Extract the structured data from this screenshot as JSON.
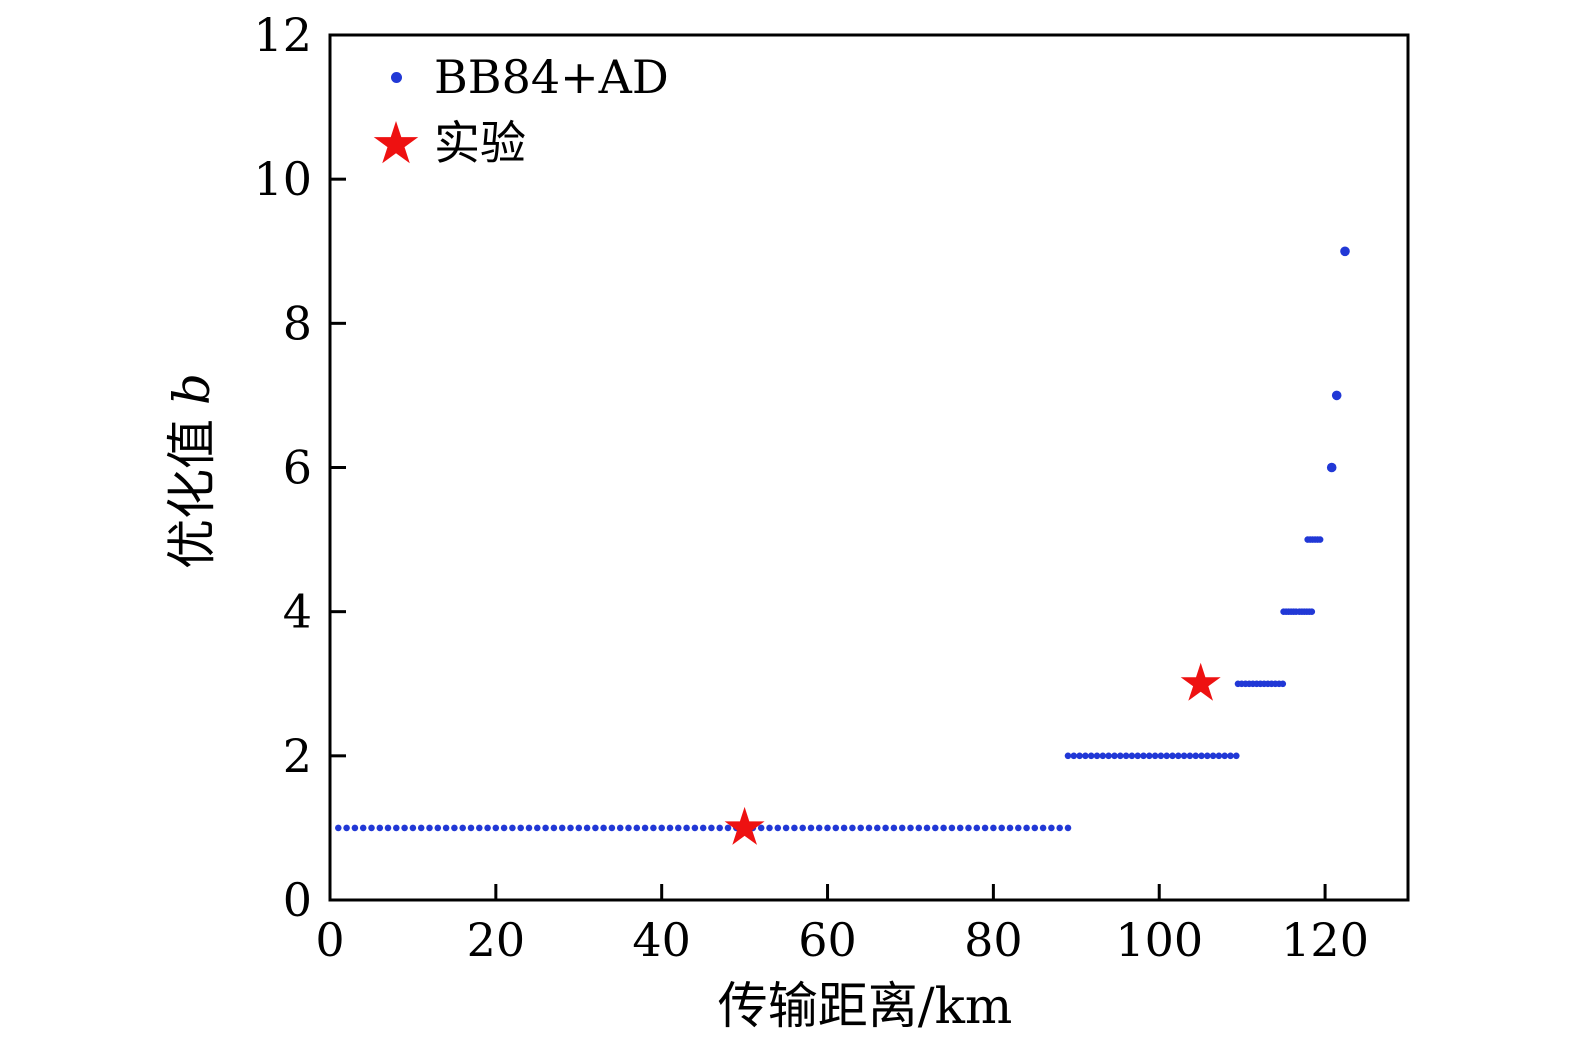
{
  "figure": {
    "background": "#ffffff",
    "frame_color": "#000000"
  },
  "chart_data": {
    "type": "scatter",
    "xlabel": "传输距离/km",
    "ylabel_text": "优化值",
    "ylabel_symbol": "b",
    "xlim": [
      0,
      130
    ],
    "ylim": [
      0,
      12
    ],
    "xticks": [
      0,
      20,
      40,
      60,
      80,
      100,
      120
    ],
    "yticks": [
      0,
      2,
      4,
      6,
      8,
      10,
      12
    ],
    "grid": false,
    "legend_position": "top-left",
    "series": [
      {
        "name": "BB84+AD",
        "marker": "dot",
        "color": "#2138d6",
        "segments": [
          {
            "y": 1,
            "x_start": 1,
            "x_end": 89,
            "dx": 1
          },
          {
            "y": 2,
            "x_start": 89,
            "x_end": 109,
            "dx": 0.7
          },
          {
            "y": 3,
            "x_start": 109.5,
            "x_end": 114.8,
            "dx": 0.45
          },
          {
            "y": 4,
            "x_start": 115,
            "x_end": 116.5,
            "dx": 0.3
          },
          {
            "y": 4,
            "x_start": 116.9,
            "x_end": 118.3,
            "dx": 0.3
          },
          {
            "y": 5,
            "x_start": 117.9,
            "x_end": 119.5,
            "dx": 0.3
          },
          {
            "y": 6,
            "x_start": 120.8,
            "x_end": 120.8,
            "dx": 1
          },
          {
            "y": 7,
            "x_start": 121.4,
            "x_end": 121.4,
            "dx": 1
          },
          {
            "y": 9,
            "x_start": 122.4,
            "x_end": 122.4,
            "dx": 1
          }
        ]
      },
      {
        "name": "实验",
        "marker": "star",
        "color": "#ee1111",
        "points": [
          [
            50,
            1
          ],
          [
            105,
            3
          ]
        ]
      }
    ]
  }
}
